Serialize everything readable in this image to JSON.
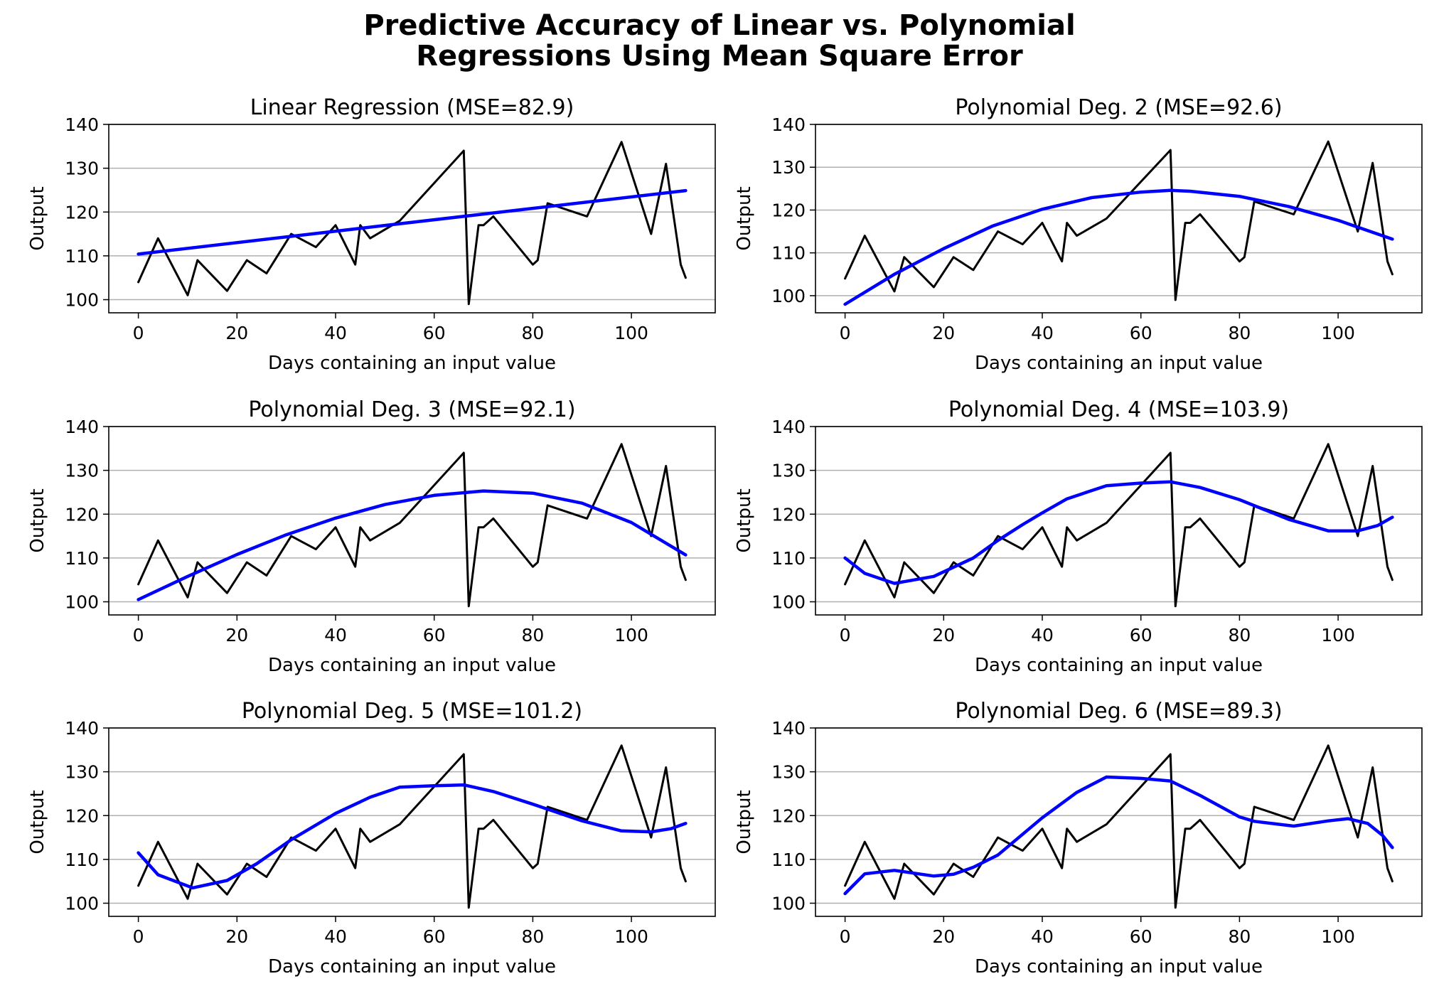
{
  "figure": {
    "title_line1": "Predictive Accuracy of Linear vs. Polynomial",
    "title_line2": "Regressions Using Mean Square Error",
    "background": "#ffffff"
  },
  "colors": {
    "actual": "#000000",
    "fit": "#0000ff",
    "grid": "#b0b0b0"
  },
  "chart_data": [
    {
      "type": "line",
      "title": "Linear Regression (MSE=82.9)",
      "xlabel": "Days containing an input value",
      "ylabel": "Output",
      "xlim": [
        -6,
        117
      ],
      "ylim": [
        97,
        140
      ],
      "xticks": [
        0,
        20,
        40,
        60,
        80,
        100
      ],
      "yticks": [
        100,
        110,
        120,
        130,
        140
      ],
      "grid": "y-major",
      "series": [
        {
          "color": "#000000",
          "x": [
            0,
            4,
            10,
            12,
            18,
            22,
            26,
            31,
            36,
            40,
            44,
            45,
            47,
            53,
            66,
            67,
            69,
            70,
            72,
            80,
            81,
            83,
            91,
            98,
            104,
            107,
            110,
            111
          ],
          "y": [
            104,
            114,
            101,
            109,
            102,
            109,
            106,
            115,
            112,
            117,
            108,
            117,
            114,
            118,
            134,
            99,
            117,
            117,
            119,
            108,
            109,
            122,
            119,
            136,
            115,
            131,
            108,
            105
          ]
        },
        {
          "color": "#0000ff",
          "x": [
            0,
            111
          ],
          "y": [
            110.4,
            124.9
          ]
        }
      ]
    },
    {
      "type": "line",
      "title": "Polynomial Deg. 2 (MSE=92.6)",
      "xlabel": "Days containing an input value",
      "ylabel": "Output",
      "xlim": [
        -6,
        117
      ],
      "ylim": [
        96,
        140
      ],
      "xticks": [
        0,
        20,
        40,
        60,
        80,
        100
      ],
      "yticks": [
        100,
        110,
        120,
        130,
        140
      ],
      "grid": "y-major",
      "series": [
        {
          "color": "#000000",
          "x": [
            0,
            4,
            10,
            12,
            18,
            22,
            26,
            31,
            36,
            40,
            44,
            45,
            47,
            53,
            66,
            67,
            69,
            70,
            72,
            80,
            81,
            83,
            91,
            98,
            104,
            107,
            110,
            111
          ],
          "y": [
            104,
            114,
            101,
            109,
            102,
            109,
            106,
            115,
            112,
            117,
            108,
            117,
            114,
            118,
            134,
            99,
            117,
            117,
            119,
            108,
            109,
            122,
            119,
            136,
            115,
            131,
            108,
            105
          ]
        },
        {
          "color": "#0000ff",
          "x": [
            0,
            10,
            20,
            30,
            40,
            50,
            60,
            66,
            70,
            80,
            90,
            100,
            111
          ],
          "y": [
            98,
            105,
            111,
            116.3,
            120.2,
            122.9,
            124.2,
            124.6,
            124.4,
            123.2,
            120.8,
            117.6,
            113.2
          ]
        }
      ]
    },
    {
      "type": "line",
      "title": "Polynomial Deg. 3 (MSE=92.1)",
      "xlabel": "Days containing an input value",
      "ylabel": "Output",
      "xlim": [
        -6,
        117
      ],
      "ylim": [
        97,
        140
      ],
      "xticks": [
        0,
        20,
        40,
        60,
        80,
        100
      ],
      "yticks": [
        100,
        110,
        120,
        130,
        140
      ],
      "grid": "y-major",
      "series": [
        {
          "color": "#000000",
          "x": [
            0,
            4,
            10,
            12,
            18,
            22,
            26,
            31,
            36,
            40,
            44,
            45,
            47,
            53,
            66,
            67,
            69,
            70,
            72,
            80,
            81,
            83,
            91,
            98,
            104,
            107,
            110,
            111
          ],
          "y": [
            104,
            114,
            101,
            109,
            102,
            109,
            106,
            115,
            112,
            117,
            108,
            117,
            114,
            118,
            134,
            99,
            117,
            117,
            119,
            108,
            109,
            122,
            119,
            136,
            115,
            131,
            108,
            105
          ]
        },
        {
          "color": "#0000ff",
          "x": [
            0,
            10,
            20,
            30,
            40,
            50,
            60,
            70,
            80,
            90,
            100,
            111
          ],
          "y": [
            100.5,
            105.8,
            110.8,
            115.3,
            119.1,
            122.2,
            124.3,
            125.3,
            124.8,
            122.5,
            118.1,
            110.7
          ]
        }
      ]
    },
    {
      "type": "line",
      "title": "Polynomial Deg. 4 (MSE=103.9)",
      "xlabel": "Days containing an input value",
      "ylabel": "Output",
      "xlim": [
        -6,
        117
      ],
      "ylim": [
        97,
        140
      ],
      "xticks": [
        0,
        20,
        40,
        60,
        80,
        100
      ],
      "yticks": [
        100,
        110,
        120,
        130,
        140
      ],
      "grid": "y-major",
      "series": [
        {
          "color": "#000000",
          "x": [
            0,
            4,
            10,
            12,
            18,
            22,
            26,
            31,
            36,
            40,
            44,
            45,
            47,
            53,
            66,
            67,
            69,
            70,
            72,
            80,
            81,
            83,
            91,
            98,
            104,
            107,
            110,
            111
          ],
          "y": [
            104,
            114,
            101,
            109,
            102,
            109,
            106,
            115,
            112,
            117,
            108,
            117,
            114,
            118,
            134,
            99,
            117,
            117,
            119,
            108,
            109,
            122,
            119,
            136,
            115,
            131,
            108,
            105
          ]
        },
        {
          "color": "#0000ff",
          "x": [
            0,
            4,
            10,
            18,
            26,
            31,
            36,
            40,
            45,
            53,
            60,
            66,
            72,
            80,
            90,
            98,
            104,
            108,
            111
          ],
          "y": [
            110,
            106.5,
            104.2,
            105.8,
            110,
            114,
            117.6,
            120.3,
            123.5,
            126.5,
            127.1,
            127.4,
            126.1,
            123.3,
            118.8,
            116.2,
            116.2,
            117.4,
            119.3
          ]
        }
      ]
    },
    {
      "type": "line",
      "title": "Polynomial Deg. 5 (MSE=101.2)",
      "xlabel": "Days containing an input value",
      "ylabel": "Output",
      "xlim": [
        -6,
        117
      ],
      "ylim": [
        97,
        140
      ],
      "xticks": [
        0,
        20,
        40,
        60,
        80,
        100
      ],
      "yticks": [
        100,
        110,
        120,
        130,
        140
      ],
      "grid": "y-major",
      "series": [
        {
          "color": "#000000",
          "x": [
            0,
            4,
            10,
            12,
            18,
            22,
            26,
            31,
            36,
            40,
            44,
            45,
            47,
            53,
            66,
            67,
            69,
            70,
            72,
            80,
            81,
            83,
            91,
            98,
            104,
            107,
            110,
            111
          ],
          "y": [
            104,
            114,
            101,
            109,
            102,
            109,
            106,
            115,
            112,
            117,
            108,
            117,
            114,
            118,
            134,
            99,
            117,
            117,
            119,
            108,
            109,
            122,
            119,
            136,
            115,
            131,
            108,
            105
          ]
        },
        {
          "color": "#0000ff",
          "x": [
            0,
            4,
            11,
            18,
            24,
            31,
            40,
            47,
            53,
            60,
            66,
            72,
            80,
            90,
            98,
            104,
            108,
            111
          ],
          "y": [
            111.5,
            106.5,
            103.5,
            105.2,
            109,
            114.5,
            120.5,
            124.2,
            126.5,
            126.8,
            127,
            125.5,
            122.6,
            118.8,
            116.5,
            116.3,
            117,
            118.2
          ]
        }
      ]
    },
    {
      "type": "line",
      "title": "Polynomial Deg. 6 (MSE=89.3)",
      "xlabel": "Days containing an input value",
      "ylabel": "Output",
      "xlim": [
        -6,
        117
      ],
      "ylim": [
        97,
        140
      ],
      "xticks": [
        0,
        20,
        40,
        60,
        80,
        100
      ],
      "yticks": [
        100,
        110,
        120,
        130,
        140
      ],
      "grid": "y-major",
      "series": [
        {
          "color": "#000000",
          "x": [
            0,
            4,
            10,
            12,
            18,
            22,
            26,
            31,
            36,
            40,
            44,
            45,
            47,
            53,
            66,
            67,
            69,
            70,
            72,
            80,
            81,
            83,
            91,
            98,
            104,
            107,
            110,
            111
          ],
          "y": [
            104,
            114,
            101,
            109,
            102,
            109,
            106,
            115,
            112,
            117,
            108,
            117,
            114,
            118,
            134,
            99,
            117,
            117,
            119,
            108,
            109,
            122,
            119,
            136,
            115,
            131,
            108,
            105
          ]
        },
        {
          "color": "#0000ff",
          "x": [
            0,
            4,
            10,
            18,
            22,
            26,
            31,
            40,
            47,
            53,
            60,
            66,
            72,
            80,
            83,
            91,
            98,
            102,
            106,
            109,
            111
          ],
          "y": [
            102.2,
            106.7,
            107.5,
            106.2,
            106.6,
            108.2,
            111,
            119.5,
            125.3,
            128.8,
            128.5,
            127.9,
            124.6,
            119.7,
            118.7,
            117.6,
            118.8,
            119.3,
            118.2,
            115.5,
            112.7
          ]
        }
      ]
    }
  ]
}
